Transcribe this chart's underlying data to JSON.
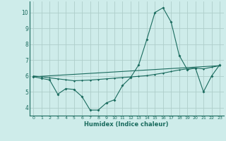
{
  "xlabel": "Humidex (Indice chaleur)",
  "bg_color": "#ceecea",
  "grid_color": "#aececa",
  "line_color": "#1a6b5e",
  "xlim": [
    -0.5,
    23.5
  ],
  "ylim": [
    3.5,
    10.7
  ],
  "yticks": [
    4,
    5,
    6,
    7,
    8,
    9,
    10
  ],
  "xticks": [
    0,
    1,
    2,
    3,
    4,
    5,
    6,
    7,
    8,
    9,
    10,
    11,
    12,
    13,
    14,
    15,
    16,
    17,
    18,
    19,
    20,
    21,
    22,
    23
  ],
  "line1_x": [
    0,
    1,
    2,
    3,
    4,
    5,
    6,
    7,
    8,
    9,
    10,
    11,
    12,
    13,
    14,
    15,
    16,
    17,
    18,
    19,
    20,
    21,
    22,
    23
  ],
  "line1_y": [
    5.95,
    5.85,
    5.75,
    4.85,
    5.2,
    5.15,
    4.7,
    3.85,
    3.85,
    4.3,
    4.5,
    5.4,
    5.9,
    6.7,
    8.3,
    10.0,
    10.3,
    9.4,
    7.3,
    6.4,
    6.5,
    5.0,
    6.0,
    6.7
  ],
  "line2_x": [
    0,
    1,
    2,
    3,
    4,
    5,
    6,
    7,
    8,
    9,
    10,
    11,
    12,
    13,
    14,
    15,
    16,
    17,
    18,
    19,
    20,
    21,
    22,
    23
  ],
  "line2_y": [
    6.0,
    5.95,
    5.88,
    5.82,
    5.76,
    5.7,
    5.72,
    5.74,
    5.78,
    5.82,
    5.86,
    5.9,
    5.94,
    5.98,
    6.02,
    6.1,
    6.18,
    6.28,
    6.38,
    6.45,
    6.5,
    6.45,
    6.55,
    6.65
  ],
  "line3_x": [
    0,
    23
  ],
  "line3_y": [
    5.95,
    6.65
  ]
}
